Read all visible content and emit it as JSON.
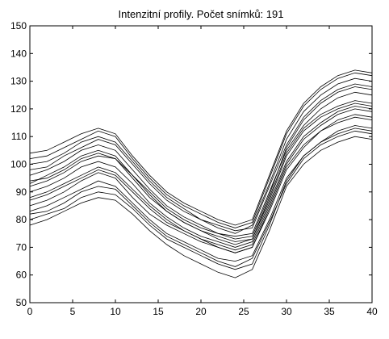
{
  "chart_data": {
    "type": "line",
    "title": "Intenzitní profily. Počet snímků: 191",
    "xlabel": "",
    "ylabel": "",
    "xlim": [
      0,
      40
    ],
    "ylim": [
      50,
      150
    ],
    "xticks": [
      0,
      5,
      10,
      15,
      20,
      25,
      30,
      35,
      40
    ],
    "yticks": [
      50,
      60,
      70,
      80,
      90,
      100,
      110,
      120,
      130,
      140,
      150
    ],
    "grid": false,
    "line_color": "#000000",
    "series_count": 191,
    "x": [
      0,
      2,
      4,
      6,
      8,
      10,
      12,
      14,
      16,
      18,
      20,
      22,
      24,
      26,
      28,
      30,
      32,
      34,
      36,
      38,
      40
    ],
    "series": [
      {
        "values": [
          92,
          94,
          97,
          101,
          103,
          102,
          96,
          89,
          83,
          79,
          76,
          73,
          71,
          73,
          88,
          104,
          113,
          118,
          121,
          123,
          122
        ]
      },
      {
        "values": [
          85,
          87,
          90,
          94,
          97,
          95,
          88,
          82,
          78,
          75,
          72,
          70,
          68,
          70,
          83,
          98,
          106,
          112,
          116,
          118,
          117
        ]
      },
      {
        "values": [
          100,
          101,
          104,
          108,
          110,
          108,
          101,
          94,
          88,
          84,
          80,
          77,
          75,
          78,
          93,
          109,
          119,
          125,
          129,
          131,
          130
        ]
      },
      {
        "values": [
          80,
          82,
          84,
          88,
          90,
          89,
          84,
          78,
          73,
          70,
          67,
          64,
          62,
          64,
          78,
          94,
          103,
          108,
          112,
          114,
          113
        ]
      },
      {
        "values": [
          96,
          98,
          101,
          105,
          107,
          105,
          98,
          91,
          85,
          81,
          78,
          75,
          73,
          74,
          89,
          106,
          116,
          122,
          126,
          128,
          127
        ]
      },
      {
        "values": [
          88,
          90,
          93,
          96,
          99,
          97,
          91,
          85,
          80,
          76,
          73,
          71,
          69,
          71,
          85,
          100,
          109,
          114,
          118,
          120,
          119
        ]
      },
      {
        "values": [
          104,
          105,
          108,
          111,
          113,
          111,
          103,
          96,
          90,
          86,
          83,
          80,
          78,
          80,
          96,
          112,
          122,
          128,
          132,
          134,
          133
        ]
      },
      {
        "values": [
          78,
          80,
          83,
          86,
          88,
          87,
          82,
          76,
          71,
          67,
          64,
          61,
          59,
          62,
          76,
          92,
          100,
          105,
          108,
          110,
          109
        ]
      },
      {
        "values": [
          94,
          95,
          98,
          102,
          104,
          102,
          95,
          88,
          83,
          79,
          76,
          74,
          72,
          73,
          87,
          103,
          112,
          117,
          120,
          122,
          121
        ]
      },
      {
        "values": [
          90,
          92,
          95,
          99,
          101,
          99,
          93,
          86,
          81,
          77,
          74,
          72,
          70,
          72,
          86,
          101,
          110,
          115,
          119,
          121,
          120
        ]
      },
      {
        "values": [
          98,
          99,
          103,
          106,
          109,
          107,
          100,
          93,
          87,
          83,
          80,
          78,
          76,
          77,
          92,
          107,
          117,
          123,
          127,
          129,
          128
        ]
      },
      {
        "values": [
          83,
          85,
          88,
          91,
          94,
          92,
          86,
          80,
          75,
          72,
          69,
          66,
          65,
          67,
          80,
          95,
          103,
          108,
          111,
          113,
          112
        ]
      },
      {
        "values": [
          102,
          103,
          106,
          109,
          112,
          110,
          102,
          95,
          89,
          85,
          82,
          79,
          77,
          79,
          95,
          111,
          121,
          127,
          131,
          133,
          132
        ]
      },
      {
        "values": [
          87,
          89,
          92,
          95,
          98,
          96,
          90,
          84,
          79,
          76,
          73,
          70,
          68,
          70,
          84,
          99,
          107,
          112,
          115,
          117,
          116
        ]
      },
      {
        "values": [
          93,
          96,
          99,
          103,
          105,
          103,
          96,
          90,
          84,
          80,
          77,
          75,
          74,
          75,
          90,
          105,
          114,
          120,
          124,
          126,
          125
        ]
      },
      {
        "values": [
          82,
          83,
          86,
          90,
          92,
          91,
          85,
          79,
          74,
          71,
          68,
          65,
          63,
          66,
          79,
          93,
          102,
          107,
          110,
          112,
          111
        ]
      }
    ]
  }
}
